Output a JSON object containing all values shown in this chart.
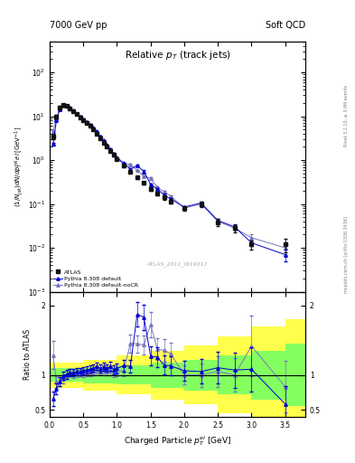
{
  "title_left": "7000 GeV pp",
  "title_right": "Soft QCD",
  "plot_title": "Relative p_{T} (track jets)",
  "xlabel": "Charged Particle p_{T} el [GeV]",
  "ylabel_main": "(1/Njet)dN/dp^{rel}_{T} el [GeV^{-1}]",
  "ylabel_ratio": "Ratio to ATLAS",
  "watermark": "ATLAS_2011_I919017",
  "right_label1": "Rivet 3.1.10, ≥ 3.4M events",
  "right_label2": "mcplots.cern.ch [arXiv:1306.3436]",
  "atlas_x": [
    0.05,
    0.1,
    0.15,
    0.2,
    0.25,
    0.3,
    0.35,
    0.4,
    0.45,
    0.5,
    0.55,
    0.6,
    0.65,
    0.7,
    0.75,
    0.8,
    0.85,
    0.9,
    0.95,
    1.0,
    1.1,
    1.2,
    1.3,
    1.4,
    1.5,
    1.6,
    1.7,
    1.8,
    2.0,
    2.25,
    2.5,
    2.75,
    3.0,
    3.5
  ],
  "atlas_y": [
    3.5,
    10.0,
    16.0,
    18.0,
    17.0,
    15.0,
    13.0,
    11.0,
    9.5,
    8.0,
    7.0,
    6.0,
    5.0,
    4.0,
    3.2,
    2.5,
    2.0,
    1.6,
    1.3,
    1.05,
    0.75,
    0.55,
    0.4,
    0.3,
    0.22,
    0.175,
    0.14,
    0.115,
    0.08,
    0.1,
    0.038,
    0.028,
    0.012,
    0.012
  ],
  "atlas_yerr": [
    0.5,
    0.8,
    1.0,
    1.0,
    0.9,
    0.7,
    0.6,
    0.5,
    0.4,
    0.35,
    0.3,
    0.25,
    0.2,
    0.18,
    0.14,
    0.12,
    0.09,
    0.08,
    0.07,
    0.06,
    0.05,
    0.04,
    0.03,
    0.025,
    0.02,
    0.018,
    0.015,
    0.012,
    0.009,
    0.015,
    0.007,
    0.006,
    0.003,
    0.004
  ],
  "py8_x": [
    0.05,
    0.1,
    0.15,
    0.2,
    0.25,
    0.3,
    0.35,
    0.4,
    0.45,
    0.5,
    0.55,
    0.6,
    0.65,
    0.7,
    0.75,
    0.8,
    0.85,
    0.9,
    0.95,
    1.0,
    1.1,
    1.2,
    1.3,
    1.4,
    1.5,
    1.6,
    1.7,
    1.8,
    2.0,
    2.25,
    2.5,
    2.75,
    3.0,
    3.5
  ],
  "py8_y": [
    2.3,
    8.0,
    14.5,
    17.8,
    17.2,
    15.5,
    13.5,
    11.5,
    10.0,
    8.5,
    7.5,
    6.5,
    5.5,
    4.5,
    3.5,
    2.8,
    2.2,
    1.8,
    1.4,
    1.15,
    0.85,
    0.62,
    0.75,
    0.55,
    0.28,
    0.22,
    0.16,
    0.13,
    0.085,
    0.105,
    0.042,
    0.03,
    0.013,
    0.007
  ],
  "py8_yerr": [
    0.2,
    0.4,
    0.5,
    0.5,
    0.5,
    0.4,
    0.35,
    0.3,
    0.25,
    0.22,
    0.18,
    0.15,
    0.12,
    0.1,
    0.08,
    0.07,
    0.06,
    0.05,
    0.04,
    0.03,
    0.025,
    0.02,
    0.04,
    0.03,
    0.015,
    0.012,
    0.009,
    0.008,
    0.006,
    0.008,
    0.004,
    0.003,
    0.002,
    0.002
  ],
  "py8nocr_x": [
    0.05,
    0.1,
    0.15,
    0.2,
    0.25,
    0.3,
    0.35,
    0.4,
    0.45,
    0.5,
    0.55,
    0.6,
    0.65,
    0.7,
    0.75,
    0.8,
    0.85,
    0.9,
    0.95,
    1.0,
    1.1,
    1.2,
    1.3,
    1.4,
    1.5,
    1.6,
    1.7,
    1.8,
    2.0,
    2.25,
    2.5,
    2.75,
    3.0,
    3.5
  ],
  "py8nocr_y": [
    4.5,
    9.0,
    14.5,
    17.0,
    17.0,
    15.5,
    13.2,
    11.2,
    9.8,
    8.2,
    7.2,
    6.2,
    5.2,
    4.3,
    3.4,
    2.7,
    2.1,
    1.7,
    1.35,
    1.1,
    0.8,
    0.8,
    0.58,
    0.43,
    0.38,
    0.24,
    0.19,
    0.15,
    0.08,
    0.1,
    0.04,
    0.028,
    0.017,
    0.01
  ],
  "py8nocr_yerr": [
    0.3,
    0.4,
    0.5,
    0.5,
    0.5,
    0.4,
    0.35,
    0.3,
    0.25,
    0.22,
    0.18,
    0.15,
    0.12,
    0.1,
    0.08,
    0.07,
    0.06,
    0.05,
    0.04,
    0.03,
    0.025,
    0.04,
    0.025,
    0.02,
    0.02,
    0.012,
    0.01,
    0.009,
    0.006,
    0.008,
    0.004,
    0.003,
    0.003,
    0.003
  ],
  "atlas_color": "#111111",
  "py8_color": "#0000cc",
  "py8nocr_color": "#7777bb",
  "band_steps": [
    {
      "xlo": 0.0,
      "xhi": 0.5,
      "yellow": 0.18,
      "green": 0.1
    },
    {
      "xlo": 0.5,
      "xhi": 1.0,
      "yellow": 0.22,
      "green": 0.12
    },
    {
      "xlo": 1.0,
      "xhi": 1.5,
      "yellow": 0.28,
      "green": 0.14
    },
    {
      "xlo": 1.5,
      "xhi": 2.0,
      "yellow": 0.35,
      "green": 0.18
    },
    {
      "xlo": 2.0,
      "xhi": 2.5,
      "yellow": 0.42,
      "green": 0.22
    },
    {
      "xlo": 2.5,
      "xhi": 3.0,
      "yellow": 0.55,
      "green": 0.28
    },
    {
      "xlo": 3.0,
      "xhi": 3.5,
      "yellow": 0.7,
      "green": 0.35
    },
    {
      "xlo": 3.5,
      "xhi": 3.8,
      "yellow": 0.8,
      "green": 0.45
    }
  ],
  "xlim": [
    0.0,
    3.8
  ],
  "ylim_main": [
    0.001,
    500
  ],
  "ylim_ratio": [
    0.4,
    2.2
  ],
  "legend_entries": [
    "ATLAS",
    "Pythia 8.308 default",
    "Pythia 8.308 default-noCR"
  ]
}
